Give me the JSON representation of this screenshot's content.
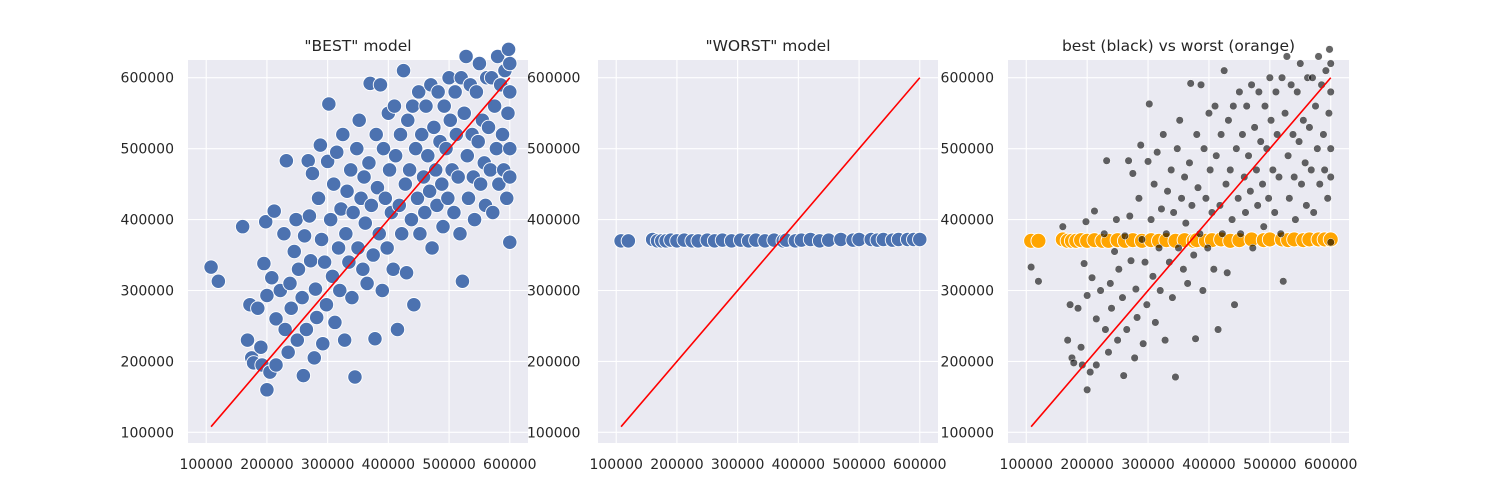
{
  "style": {
    "axes_facecolor": "#EAEAF2",
    "grid_color": "#FFFFFF",
    "scatter_color": "#4C72B0",
    "best_color": "#000000",
    "worst_color": "#FFA500",
    "identity_line_color": "#FF0000"
  },
  "chart_data": [
    {
      "type": "scatter",
      "title": "\"BEST\" model",
      "xlabel": "",
      "ylabel": "",
      "xlim": [
        70000,
        630000
      ],
      "ylim": [
        85000,
        625000
      ],
      "xticks": [
        100000,
        200000,
        300000,
        400000,
        500000,
        600000
      ],
      "yticks": [
        100000,
        200000,
        300000,
        400000,
        500000,
        600000
      ],
      "xtick_labels": [
        "100000",
        "200000",
        "300000",
        "400000",
        "500000",
        "600000"
      ],
      "ytick_labels": [
        "100000",
        "200000",
        "300000",
        "400000",
        "500000",
        "600000"
      ],
      "grid": true,
      "identity_line": [
        [
          108000,
          108000
        ],
        [
          600000,
          600000
        ]
      ],
      "points": [
        [
          108000,
          333000
        ],
        [
          120000,
          313000
        ],
        [
          160000,
          390000
        ],
        [
          168000,
          230000
        ],
        [
          172000,
          280000
        ],
        [
          175000,
          205000
        ],
        [
          178000,
          198000
        ],
        [
          185000,
          275000
        ],
        [
          190000,
          220000
        ],
        [
          192000,
          195000
        ],
        [
          195000,
          338000
        ],
        [
          198000,
          397000
        ],
        [
          200000,
          160000
        ],
        [
          200000,
          293000
        ],
        [
          205000,
          185000
        ],
        [
          208000,
          318000
        ],
        [
          212000,
          412000
        ],
        [
          215000,
          195000
        ],
        [
          215000,
          260000
        ],
        [
          222000,
          300000
        ],
        [
          228000,
          380000
        ],
        [
          230000,
          245000
        ],
        [
          232000,
          483000
        ],
        [
          235000,
          213000
        ],
        [
          238000,
          310000
        ],
        [
          240000,
          275000
        ],
        [
          245000,
          355000
        ],
        [
          248000,
          400000
        ],
        [
          250000,
          230000
        ],
        [
          252000,
          330000
        ],
        [
          258000,
          290000
        ],
        [
          260000,
          180000
        ],
        [
          262000,
          377000
        ],
        [
          265000,
          245000
        ],
        [
          268000,
          483000
        ],
        [
          270000,
          405000
        ],
        [
          272000,
          342000
        ],
        [
          275000,
          465000
        ],
        [
          278000,
          205000
        ],
        [
          280000,
          302000
        ],
        [
          282000,
          262000
        ],
        [
          285000,
          430000
        ],
        [
          288000,
          505000
        ],
        [
          290000,
          372000
        ],
        [
          292000,
          225000
        ],
        [
          295000,
          340000
        ],
        [
          298000,
          280000
        ],
        [
          300000,
          482000
        ],
        [
          302000,
          563000
        ],
        [
          305000,
          400000
        ],
        [
          308000,
          320000
        ],
        [
          310000,
          450000
        ],
        [
          312000,
          255000
        ],
        [
          315000,
          495000
        ],
        [
          318000,
          360000
        ],
        [
          320000,
          300000
        ],
        [
          322000,
          415000
        ],
        [
          325000,
          520000
        ],
        [
          328000,
          230000
        ],
        [
          330000,
          380000
        ],
        [
          332000,
          440000
        ],
        [
          335000,
          340000
        ],
        [
          338000,
          470000
        ],
        [
          340000,
          290000
        ],
        [
          342000,
          410000
        ],
        [
          345000,
          178000
        ],
        [
          348000,
          500000
        ],
        [
          350000,
          360000
        ],
        [
          352000,
          540000
        ],
        [
          355000,
          430000
        ],
        [
          358000,
          330000
        ],
        [
          360000,
          460000
        ],
        [
          362000,
          395000
        ],
        [
          365000,
          310000
        ],
        [
          368000,
          480000
        ],
        [
          370000,
          592000
        ],
        [
          372000,
          420000
        ],
        [
          375000,
          350000
        ],
        [
          378000,
          232000
        ],
        [
          380000,
          520000
        ],
        [
          382000,
          445000
        ],
        [
          385000,
          380000
        ],
        [
          387000,
          590000
        ],
        [
          390000,
          300000
        ],
        [
          392000,
          500000
        ],
        [
          395000,
          430000
        ],
        [
          398000,
          360000
        ],
        [
          400000,
          550000
        ],
        [
          402000,
          470000
        ],
        [
          405000,
          410000
        ],
        [
          408000,
          330000
        ],
        [
          410000,
          560000
        ],
        [
          412000,
          490000
        ],
        [
          415000,
          245000
        ],
        [
          418000,
          420000
        ],
        [
          420000,
          520000
        ],
        [
          422000,
          380000
        ],
        [
          425000,
          610000
        ],
        [
          428000,
          450000
        ],
        [
          430000,
          325000
        ],
        [
          432000,
          540000
        ],
        [
          435000,
          470000
        ],
        [
          438000,
          400000
        ],
        [
          440000,
          560000
        ],
        [
          442000,
          280000
        ],
        [
          445000,
          500000
        ],
        [
          448000,
          430000
        ],
        [
          450000,
          580000
        ],
        [
          452000,
          380000
        ],
        [
          455000,
          520000
        ],
        [
          458000,
          460000
        ],
        [
          460000,
          410000
        ],
        [
          462000,
          560000
        ],
        [
          465000,
          490000
        ],
        [
          468000,
          440000
        ],
        [
          470000,
          590000
        ],
        [
          472000,
          360000
        ],
        [
          475000,
          530000
        ],
        [
          478000,
          470000
        ],
        [
          480000,
          420000
        ],
        [
          482000,
          580000
        ],
        [
          485000,
          510000
        ],
        [
          488000,
          450000
        ],
        [
          490000,
          390000
        ],
        [
          492000,
          560000
        ],
        [
          495000,
          500000
        ],
        [
          498000,
          430000
        ],
        [
          500000,
          600000
        ],
        [
          502000,
          540000
        ],
        [
          505000,
          470000
        ],
        [
          508000,
          410000
        ],
        [
          510000,
          580000
        ],
        [
          512000,
          520000
        ],
        [
          515000,
          460000
        ],
        [
          518000,
          380000
        ],
        [
          520000,
          600000
        ],
        [
          522000,
          313000
        ],
        [
          525000,
          550000
        ],
        [
          528000,
          630000
        ],
        [
          530000,
          490000
        ],
        [
          532000,
          430000
        ],
        [
          535000,
          590000
        ],
        [
          538000,
          520000
        ],
        [
          540000,
          460000
        ],
        [
          542000,
          400000
        ],
        [
          545000,
          580000
        ],
        [
          548000,
          510000
        ],
        [
          550000,
          620000
        ],
        [
          552000,
          450000
        ],
        [
          555000,
          540000
        ],
        [
          558000,
          480000
        ],
        [
          560000,
          420000
        ],
        [
          562000,
          600000
        ],
        [
          565000,
          530000
        ],
        [
          568000,
          470000
        ],
        [
          570000,
          600000
        ],
        [
          572000,
          410000
        ],
        [
          575000,
          560000
        ],
        [
          578000,
          500000
        ],
        [
          580000,
          630000
        ],
        [
          582000,
          450000
        ],
        [
          585000,
          590000
        ],
        [
          588000,
          520000
        ],
        [
          590000,
          470000
        ],
        [
          592000,
          610000
        ],
        [
          595000,
          430000
        ],
        [
          597000,
          550000
        ],
        [
          598000,
          640000
        ],
        [
          600000,
          368000
        ],
        [
          600000,
          500000
        ],
        [
          600000,
          580000
        ],
        [
          600000,
          460000
        ],
        [
          600000,
          620000
        ]
      ]
    },
    {
      "type": "scatter",
      "title": "\"WORST\" model",
      "xlabel": "",
      "ylabel": "",
      "xlim": [
        70000,
        630000
      ],
      "ylim": [
        85000,
        625000
      ],
      "xticks": [
        100000,
        200000,
        300000,
        400000,
        500000,
        600000
      ],
      "yticks": [
        100000,
        200000,
        300000,
        400000,
        500000,
        600000
      ],
      "xtick_labels": [
        "100000",
        "200000",
        "300000",
        "400000",
        "500000",
        "600000"
      ],
      "ytick_labels": [
        "100000",
        "200000",
        "300000",
        "400000",
        "500000",
        "600000"
      ],
      "grid": true,
      "identity_line": [
        [
          108000,
          108000
        ],
        [
          600000,
          600000
        ]
      ],
      "points": [
        [
          108000,
          370000
        ],
        [
          120000,
          370000
        ],
        [
          160000,
          372000
        ],
        [
          168000,
          370000
        ],
        [
          175000,
          370000
        ],
        [
          182000,
          370000
        ],
        [
          190000,
          371000
        ],
        [
          200000,
          370000
        ],
        [
          212000,
          371000
        ],
        [
          225000,
          370000
        ],
        [
          235000,
          370000
        ],
        [
          250000,
          371000
        ],
        [
          262000,
          370000
        ],
        [
          275000,
          371000
        ],
        [
          290000,
          370000
        ],
        [
          305000,
          371000
        ],
        [
          318000,
          370000
        ],
        [
          330000,
          371000
        ],
        [
          345000,
          370000
        ],
        [
          360000,
          371000
        ],
        [
          375000,
          370000
        ],
        [
          380000,
          371000
        ],
        [
          395000,
          370000
        ],
        [
          405000,
          371000
        ],
        [
          420000,
          372000
        ],
        [
          435000,
          370000
        ],
        [
          450000,
          371000
        ],
        [
          470000,
          372000
        ],
        [
          490000,
          371000
        ],
        [
          500000,
          372000
        ],
        [
          520000,
          372000
        ],
        [
          530000,
          371000
        ],
        [
          540000,
          372000
        ],
        [
          555000,
          371000
        ],
        [
          565000,
          372000
        ],
        [
          580000,
          372000
        ],
        [
          590000,
          372000
        ],
        [
          600000,
          372000
        ]
      ]
    },
    {
      "type": "scatter",
      "title": "best (black) vs worst (orange)",
      "xlabel": "",
      "ylabel": "",
      "xlim": [
        70000,
        630000
      ],
      "ylim": [
        85000,
        625000
      ],
      "xticks": [
        100000,
        200000,
        300000,
        400000,
        500000,
        600000
      ],
      "yticks": [
        100000,
        200000,
        300000,
        400000,
        500000,
        600000
      ],
      "xtick_labels": [
        "100000",
        "200000",
        "300000",
        "400000",
        "500000",
        "600000"
      ],
      "ytick_labels": [
        "100000",
        "200000",
        "300000",
        "400000",
        "500000",
        "600000"
      ],
      "grid": true,
      "identity_line": [
        [
          108000,
          108000
        ],
        [
          600000,
          600000
        ]
      ]
    }
  ]
}
